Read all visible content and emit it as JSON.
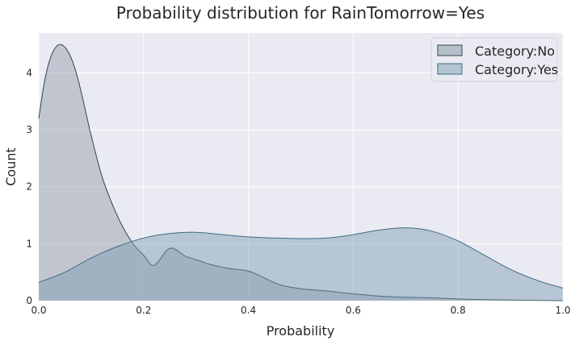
{
  "chart_data": {
    "type": "area",
    "title": "Probability distribution for RainTomorrow=Yes",
    "xlabel": "Probability",
    "ylabel": "Count",
    "xlim": [
      0.0,
      1.0
    ],
    "ylim": [
      0.0,
      4.7
    ],
    "x_ticks": [
      0.0,
      0.2,
      0.4,
      0.6,
      0.8,
      1.0
    ],
    "x_tick_labels": [
      "0.0",
      "0.2",
      "0.4",
      "0.6",
      "0.8",
      "1.0"
    ],
    "y_ticks": [
      0,
      1,
      2,
      3,
      4
    ],
    "y_tick_labels": [
      "0",
      "1",
      "2",
      "3",
      "4"
    ],
    "grid": true,
    "legend_position": "top-right",
    "series": [
      {
        "name": "Category:No",
        "fill": "#8e9aa6",
        "line": "#2f4553",
        "fill_opacity": 0.45,
        "x": [
          0.0,
          0.01,
          0.02,
          0.03,
          0.04,
          0.05,
          0.06,
          0.07,
          0.08,
          0.09,
          0.1,
          0.12,
          0.14,
          0.16,
          0.18,
          0.2,
          0.22,
          0.25,
          0.28,
          0.3,
          0.33,
          0.36,
          0.4,
          0.43,
          0.46,
          0.5,
          0.55,
          0.6,
          0.65,
          0.7,
          0.75,
          0.8,
          0.85,
          0.9,
          0.95,
          1.0
        ],
        "y": [
          3.2,
          3.8,
          4.2,
          4.42,
          4.5,
          4.45,
          4.3,
          4.05,
          3.7,
          3.3,
          2.9,
          2.2,
          1.7,
          1.3,
          1.0,
          0.8,
          0.62,
          0.92,
          0.78,
          0.72,
          0.63,
          0.57,
          0.52,
          0.4,
          0.28,
          0.21,
          0.17,
          0.12,
          0.08,
          0.06,
          0.05,
          0.03,
          0.02,
          0.01,
          0.005,
          0.0
        ]
      },
      {
        "name": "Category:Yes",
        "fill": "#7a9bb0",
        "line": "#3e6a82",
        "fill_opacity": 0.45,
        "x": [
          0.0,
          0.05,
          0.1,
          0.15,
          0.2,
          0.25,
          0.3,
          0.35,
          0.4,
          0.45,
          0.5,
          0.55,
          0.6,
          0.65,
          0.7,
          0.75,
          0.8,
          0.85,
          0.9,
          0.95,
          1.0
        ],
        "y": [
          0.32,
          0.5,
          0.75,
          0.95,
          1.1,
          1.18,
          1.2,
          1.16,
          1.12,
          1.1,
          1.09,
          1.1,
          1.16,
          1.24,
          1.28,
          1.22,
          1.05,
          0.8,
          0.55,
          0.36,
          0.22
        ]
      }
    ]
  }
}
